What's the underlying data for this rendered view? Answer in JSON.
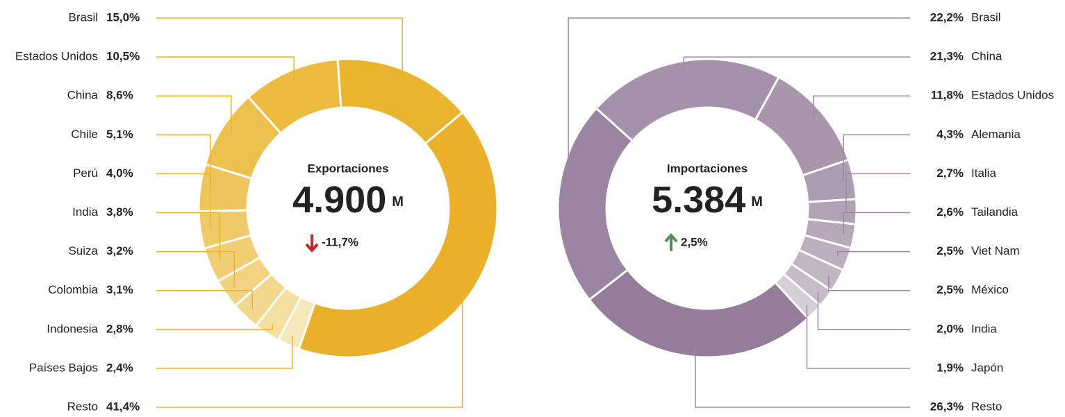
{
  "chart_data": [
    {
      "type": "donut",
      "title": "Exportaciones",
      "total": {
        "value": 4900,
        "label": "4.900"
      },
      "unit": "M",
      "change": {
        "value": -11.7,
        "label": "-11,7%",
        "color": "#c8272e"
      },
      "accent": "#f0b323",
      "categories": [
        "Brasil",
        "Estados Unidos",
        "China",
        "Chile",
        "Perú",
        "India",
        "Suiza",
        "Colombia",
        "Indonesia",
        "Países Bajos",
        "Resto"
      ],
      "values": [
        15.0,
        10.5,
        8.6,
        5.1,
        4.0,
        3.8,
        3.2,
        3.1,
        2.8,
        2.4,
        41.4
      ],
      "value_labels": [
        "15,0%",
        "10,5%",
        "8,6%",
        "5,1%",
        "4,0%",
        "3,8%",
        "3,2%",
        "3,1%",
        "2,8%",
        "2,4%",
        "41,4%"
      ],
      "colors": [
        "#ebb42e",
        "#ecbb40",
        "#edc150",
        "#eec55c",
        "#efca69",
        "#f0ce74",
        "#f1d382",
        "#f2d88f",
        "#f4dea0",
        "#f6e8bb",
        "#eab02a"
      ]
    },
    {
      "type": "donut",
      "title": "Importaciones",
      "total": {
        "value": 5384,
        "label": "5.384"
      },
      "unit": "M",
      "change": {
        "value": 2.5,
        "label": "2,5%",
        "color": "#5a8a5a"
      },
      "accent": "#9e87a5",
      "categories": [
        "Brasil",
        "China",
        "Estados Unidos",
        "Alemania",
        "Italia",
        "Tailandia",
        "Viet Nam",
        "México",
        "India",
        "Japón",
        "Resto"
      ],
      "values": [
        22.2,
        21.3,
        11.8,
        4.3,
        2.7,
        2.6,
        2.5,
        2.5,
        2.0,
        1.9,
        26.3
      ],
      "value_labels": [
        "22,2%",
        "21,3%",
        "11,8%",
        "4,3%",
        "2,7%",
        "2,6%",
        "2,5%",
        "2,5%",
        "2,0%",
        "1,9%",
        "26,3%"
      ],
      "colors": [
        "#9c85a3",
        "#a592aa",
        "#a996ad",
        "#ad9db2",
        "#b1a2b6",
        "#b6a8ba",
        "#bbafbf",
        "#c1b5c4",
        "#c6bcc9",
        "#d5cdd8",
        "#957c9a"
      ]
    }
  ]
}
